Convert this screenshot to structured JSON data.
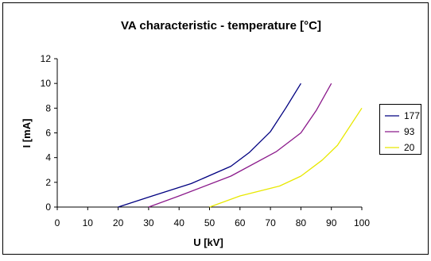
{
  "chart_data": {
    "type": "line",
    "title": "VA characteristic - temperature [°C]",
    "xlabel": "U [kV]",
    "ylabel": "I [mA]",
    "xlim": [
      0,
      100
    ],
    "ylim": [
      0,
      12
    ],
    "x_ticks": [
      0,
      10,
      20,
      30,
      40,
      50,
      60,
      70,
      80,
      90,
      100
    ],
    "y_ticks": [
      0,
      2,
      4,
      6,
      8,
      10,
      12
    ],
    "grid": false,
    "legend_position": "right",
    "series": [
      {
        "name": "177",
        "color": "#000080",
        "points": [
          [
            20,
            0
          ],
          [
            30,
            0.8
          ],
          [
            44,
            1.9
          ],
          [
            57,
            3.3
          ],
          [
            63,
            4.4
          ],
          [
            70,
            6.1
          ],
          [
            75,
            8.0
          ],
          [
            80,
            10.0
          ]
        ]
      },
      {
        "name": "93",
        "color": "#8B1A8B",
        "points": [
          [
            30,
            0
          ],
          [
            40,
            0.9
          ],
          [
            57,
            2.5
          ],
          [
            72,
            4.5
          ],
          [
            80,
            6.0
          ],
          [
            85,
            7.8
          ],
          [
            90,
            10.0
          ]
        ]
      },
      {
        "name": "20",
        "color": "#E8E800",
        "points": [
          [
            50,
            0
          ],
          [
            60,
            0.9
          ],
          [
            73,
            1.7
          ],
          [
            80,
            2.5
          ],
          [
            87,
            3.8
          ],
          [
            92,
            5.0
          ],
          [
            100,
            8.0
          ]
        ]
      }
    ]
  }
}
